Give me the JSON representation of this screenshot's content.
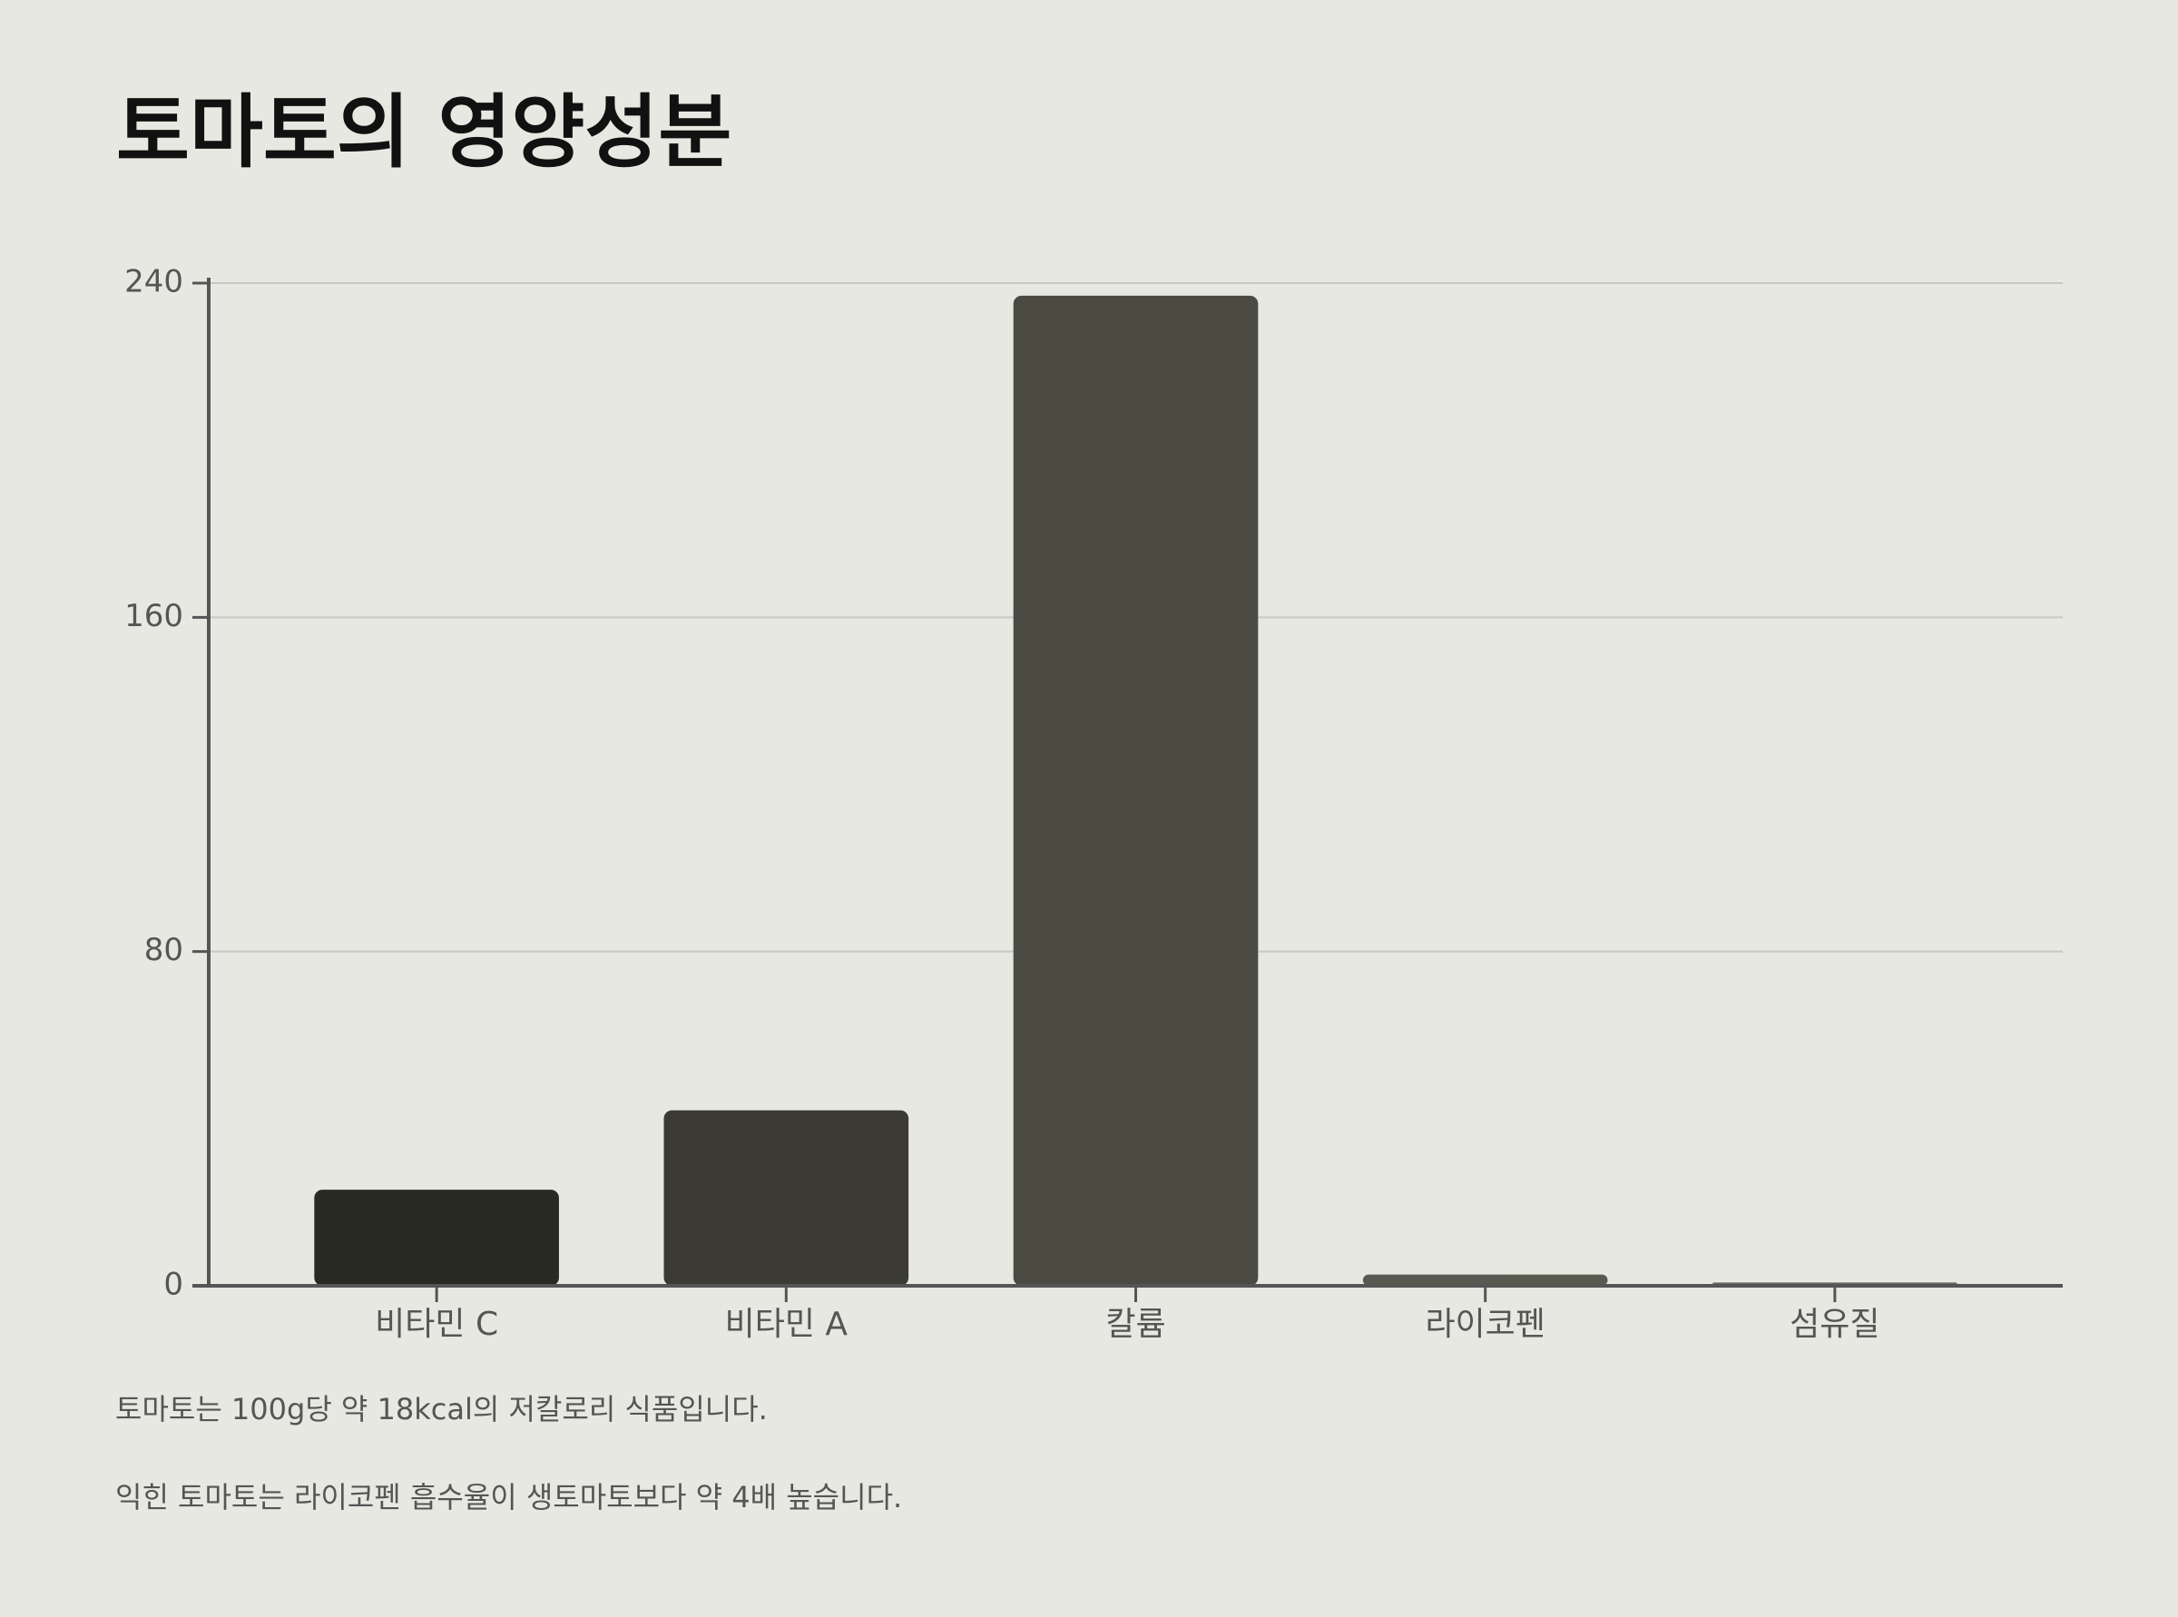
{
  "chart_data": {
    "type": "bar",
    "title": "토마토의 영양성분",
    "categories": [
      "비타민 C",
      "비타민 A",
      "칼륨",
      "라이코펜",
      "섬유질"
    ],
    "values": [
      23,
      42,
      237,
      2.7,
      0.8
    ],
    "colors": [
      "#2a2a24",
      "#3b3a33",
      "#4b4b42",
      "#595950",
      "#66665d"
    ],
    "ylim": [
      0,
      240
    ],
    "yticks": [
      0,
      80,
      160,
      240
    ],
    "grid": true
  },
  "notes": [
    "토마토는 100g당 약 18kcal의 저칼로리 식품입니다.",
    "익힌 토마토는 라이코펜 흡수율이 생토마토보다 약 4배 높습니다."
  ]
}
